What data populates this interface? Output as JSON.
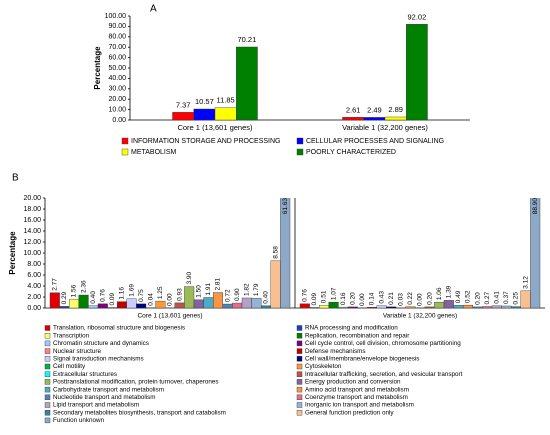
{
  "chart_data": [
    {
      "type": "bar",
      "panel_label": "A",
      "y_label": "Percentage",
      "categories": [
        "Core 1 (13,601 genes)",
        "Variable 1 (32,200 genes)"
      ],
      "series": [
        {
          "name": "INFORMATION STORAGE AND PROCESSING",
          "color": "#ff0000",
          "values": [
            7.37,
            2.61
          ]
        },
        {
          "name": "CELLULAR PROCESSES AND SIGNALING",
          "color": "#0000ff",
          "values": [
            10.57,
            2.49
          ]
        },
        {
          "name": "METABOLISM",
          "color": "#ffff00",
          "values": [
            11.85,
            2.89
          ]
        },
        {
          "name": "POORLY CHARACTERIZED",
          "color": "#008000",
          "values": [
            70.21,
            92.02
          ]
        }
      ],
      "ylim": [
        0,
        100
      ],
      "yticks": [
        {
          "value": 0,
          "label": "0.00"
        },
        {
          "value": 10,
          "label": "10.00"
        },
        {
          "value": 20,
          "label": "20.00"
        },
        {
          "value": 30,
          "label": "30.00"
        },
        {
          "value": 40,
          "label": "40.00"
        },
        {
          "value": 50,
          "label": "50.00"
        },
        {
          "value": 60,
          "label": "60.00"
        },
        {
          "value": 70,
          "label": "70.00"
        },
        {
          "value": 80,
          "label": "80.00"
        },
        {
          "value": 90,
          "label": "90.00"
        },
        {
          "value": 100,
          "label": "100.00"
        }
      ],
      "grid": false,
      "legend": "bottom"
    },
    {
      "type": "bar",
      "panel_label": "B",
      "y_label": "Percentage",
      "categories": [
        "Core 1 (13,601 genes)",
        "Variable 1 (32,200 genes)"
      ],
      "series": [
        {
          "name": "Translation, ribosomal structure and biogenesis",
          "color": "#e00000",
          "values": [
            2.77,
            0.76
          ],
          "value_labels": [
            "2.77",
            "0.76"
          ]
        },
        {
          "name": "RNA processing and modification",
          "color": "#1f3fbf",
          "values": [
            0.29,
            0.09
          ],
          "value_labels": [
            "0.29",
            "0.09"
          ]
        },
        {
          "name": "Transcription",
          "color": "#ffff66",
          "values": [
            1.56,
            0.51
          ],
          "value_labels": [
            "1.56",
            "0.51"
          ]
        },
        {
          "name": "Replication, recombination and repair",
          "color": "#008000",
          "values": [
            2.36,
            1.07
          ],
          "value_labels": [
            "2.36",
            "1.07"
          ]
        },
        {
          "name": "Chromatin structure and dynamics",
          "color": "#99ccff",
          "values": [
            0.4,
            0.16
          ],
          "value_labels": [
            "0.40",
            "0.16"
          ]
        },
        {
          "name": "Cell cycle control, cell division, chromosome partitioning",
          "color": "#800080",
          "values": [
            0.76,
            0.2
          ],
          "value_labels": [
            "0.76",
            "0.20"
          ]
        },
        {
          "name": "Nuclear structure",
          "color": "#ff8080",
          "values": [
            0.09,
            0.0
          ],
          "value_labels": [
            "0.09",
            "0.00"
          ]
        },
        {
          "name": "Defense mechanisms",
          "color": "#c00000",
          "values": [
            1.16,
            0.14
          ],
          "value_labels": [
            "1.16",
            "0.14"
          ]
        },
        {
          "name": "Signal transduction mechanisms",
          "color": "#ccccff",
          "values": [
            1.69,
            0.43
          ],
          "value_labels": [
            "1.69",
            "0.43"
          ]
        },
        {
          "name": "Cell wall/membrane/envelope biogenesis",
          "color": "#000080",
          "values": [
            0.75,
            0.21
          ],
          "value_labels": [
            "0.75",
            "0.21"
          ]
        },
        {
          "name": "Cell motility",
          "color": "#00b050",
          "values": [
            0.04,
            0.03
          ],
          "value_labels": [
            "0.04",
            "0.03"
          ]
        },
        {
          "name": "Cytoskeleton",
          "color": "#ff9933",
          "values": [
            1.25,
            0.22
          ],
          "value_labels": [
            "1.25",
            "0.22"
          ]
        },
        {
          "name": "Extracellular structures",
          "color": "#00ffff",
          "values": [
            0.0,
            0.0
          ],
          "value_labels": [
            "0.00",
            "0.00"
          ]
        },
        {
          "name": "Intracellular trafficking, secretion, and vesicular transport",
          "color": "#c0504d",
          "values": [
            0.93,
            0.2
          ],
          "value_labels": [
            "0.93",
            "0.20"
          ]
        },
        {
          "name": "Posttranslational modification, protein turnover, chaperones",
          "color": "#9bbb59",
          "values": [
            3.9,
            1.06
          ],
          "value_labels": [
            "3.90",
            "1.06"
          ]
        },
        {
          "name": "Energy production and conversion",
          "color": "#8064a2",
          "values": [
            1.5,
            1.39
          ],
          "value_labels": [
            "1.50",
            "1.39"
          ]
        },
        {
          "name": "Carbohydrate transport and metabolism",
          "color": "#4bacc6",
          "values": [
            1.91,
            0.49
          ],
          "value_labels": [
            "1.91",
            "0.49"
          ]
        },
        {
          "name": "Amino acid transport and metabolism",
          "color": "#f79646",
          "values": [
            2.81,
            0.52
          ],
          "value_labels": [
            "2.81",
            "0.52"
          ]
        },
        {
          "name": "Nucleotide transport and metabolism",
          "color": "#4f81bd",
          "values": [
            0.72,
            0.2
          ],
          "value_labels": [
            "0.72",
            "0.20"
          ]
        },
        {
          "name": "Coenzyme transport and metabolism",
          "color": "#e46c8a",
          "values": [
            0.9,
            0.27
          ],
          "value_labels": [
            "0.90",
            "0.27"
          ]
        },
        {
          "name": "Lipid transport and metabolism",
          "color": "#b3a2c7",
          "values": [
            1.82,
            0.41
          ],
          "value_labels": [
            "1.82",
            "0.41"
          ]
        },
        {
          "name": "Inorganic ion transport and metabolism",
          "color": "#93b3d7",
          "values": [
            1.79,
            0.37
          ],
          "value_labels": [
            "1.79",
            "0.37"
          ]
        },
        {
          "name": "Secondary metabolites biosynthesis, transport and catabolism",
          "color": "#31859c",
          "values": [
            0.4,
            0.25
          ],
          "value_labels": [
            "0.40",
            "0.25"
          ]
        },
        {
          "name": "General function prediction only",
          "color": "#fabf8f",
          "values": [
            8.58,
            3.12
          ],
          "value_labels": [
            "8.58",
            "3.12"
          ]
        },
        {
          "name": "Function unknown",
          "color": "#8ea9c8",
          "values": [
            61.63,
            88.9
          ],
          "value_labels": [
            "61.63",
            "88.90"
          ]
        }
      ],
      "ylim": [
        0,
        20
      ],
      "yticks": [
        {
          "value": 0,
          "label": "0.00"
        },
        {
          "value": 2,
          "label": "2.00"
        },
        {
          "value": 4,
          "label": "4.00"
        },
        {
          "value": 6,
          "label": "6.00"
        },
        {
          "value": 8,
          "label": "8.00"
        },
        {
          "value": 10,
          "label": "10.00"
        },
        {
          "value": 12,
          "label": "12.00"
        },
        {
          "value": 14,
          "label": "14.00"
        },
        {
          "value": 16,
          "label": "16.00"
        },
        {
          "value": 18,
          "label": "18.00"
        },
        {
          "value": 20,
          "label": "20.00"
        }
      ],
      "grid": false,
      "legend": "bottom"
    }
  ]
}
